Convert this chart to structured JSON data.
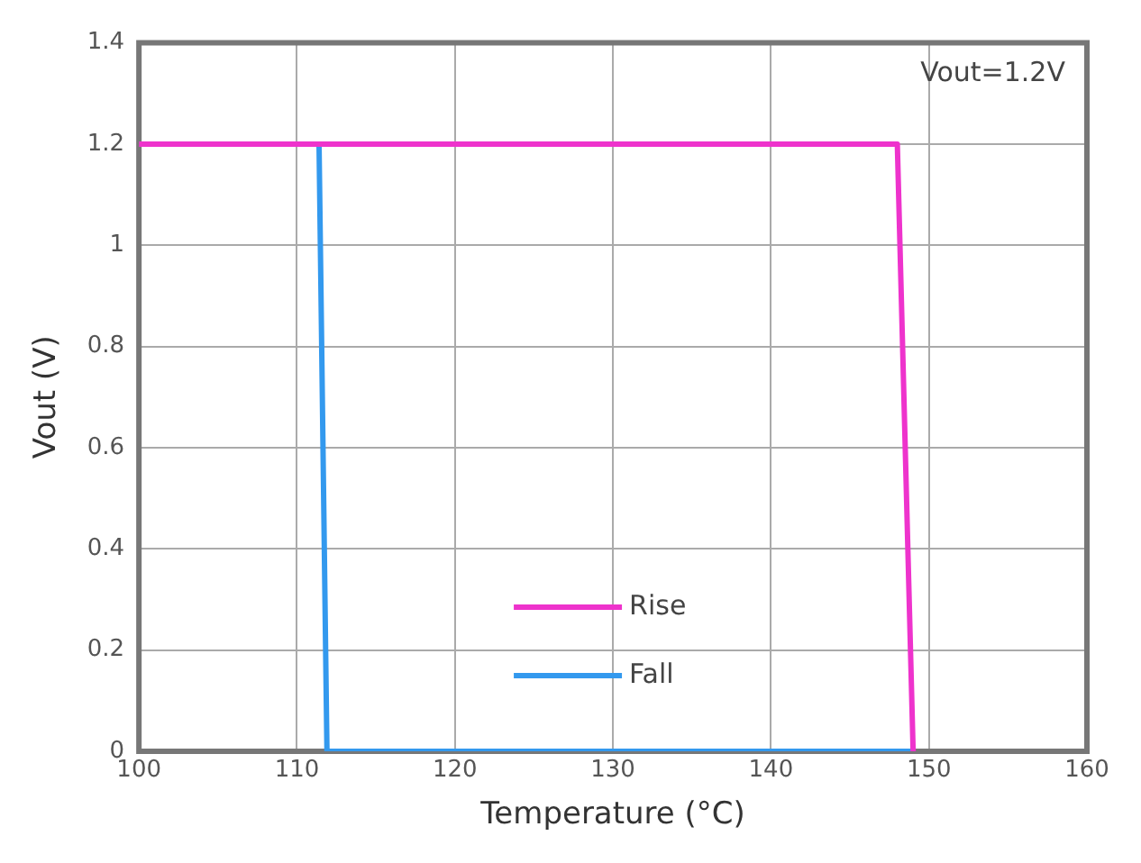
{
  "chart_data": {
    "type": "line",
    "xlabel": "Temperature (°C)",
    "ylabel": "Vout (V)",
    "annotations": [
      "Vout=1.2V"
    ],
    "xlim": [
      100,
      160
    ],
    "xticks": [
      100,
      110,
      120,
      130,
      140,
      150,
      160
    ],
    "ylim": [
      0,
      1.4
    ],
    "yticks": [
      0,
      0.2,
      0.4,
      0.6,
      0.8,
      1,
      1.2,
      1.4
    ],
    "grid": true,
    "legend": "bottom",
    "marker": "none",
    "line_style": "solid",
    "series": [
      {
        "name": "Rise",
        "color": "#ee33cc",
        "x": [
          100,
          148,
          149
        ],
        "values": [
          1.2,
          1.2,
          0
        ]
      },
      {
        "name": "Fall",
        "color": "#3399ee",
        "x": [
          111.4,
          111.9,
          149
        ],
        "values": [
          1.2,
          0,
          0
        ]
      }
    ]
  }
}
